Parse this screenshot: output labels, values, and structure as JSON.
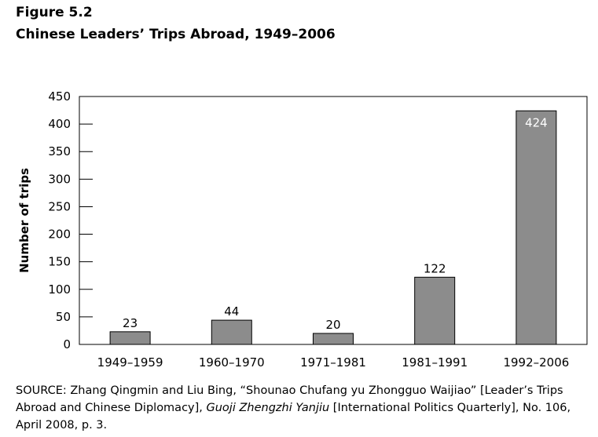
{
  "figure": {
    "label": "Figure 5.2",
    "title": "Chinese Leaders’ Trips Abroad, 1949–2006"
  },
  "chart_data": {
    "type": "bar",
    "categories": [
      "1949–1959",
      "1960–1970",
      "1971–1981",
      "1981–1991",
      "1992–2006"
    ],
    "values": [
      23,
      44,
      20,
      122,
      424
    ],
    "data_labels": [
      "23",
      "44",
      "20",
      "122",
      "424"
    ],
    "ylabel": "Number of trips",
    "xlabel": "",
    "ylim": [
      0,
      450
    ],
    "yticks": [
      0,
      50,
      100,
      150,
      200,
      250,
      300,
      350,
      400,
      450
    ],
    "grid": false,
    "legend": "none",
    "bar_color": "#8c8c8c"
  },
  "source": {
    "prefix": "SOURCE: Zhang Qingmin and Liu Bing, “Shounao Chufang yu Zhongguo Waijiao” [Leader’s Trips Abroad and Chinese Diplomacy], ",
    "journal": "Guoji Zhengzhi Yanjiu",
    "suffix": " [International Politics Quarterly], No. 106, April 2008, p. 3."
  }
}
